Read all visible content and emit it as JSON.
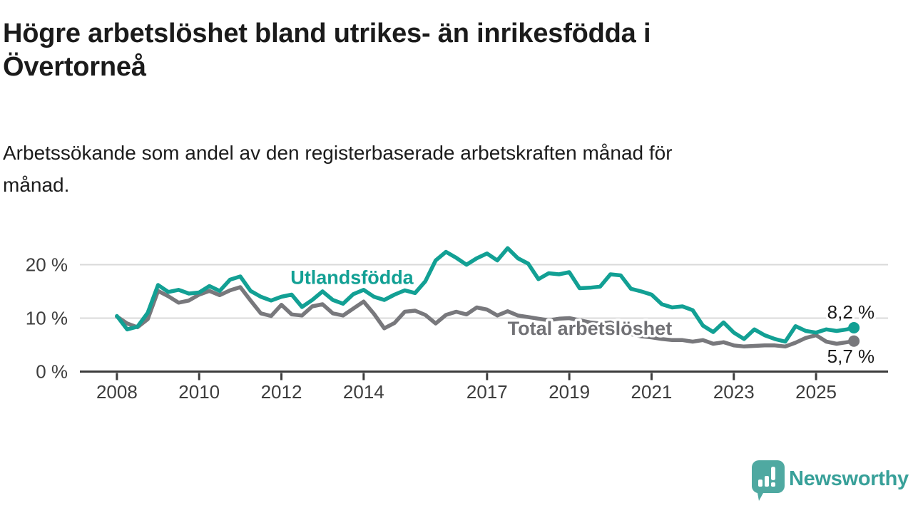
{
  "header": {
    "title": "Högre arbetslöshet bland utrikes- än inrikesfödda i\nÖvertorneå",
    "subtitle": "Arbetssökande som andel av den registerbaserade arbetskraften månad för\nmånad."
  },
  "footer": {
    "brand": "Newsworthy"
  },
  "colors": {
    "teal": "#12a094",
    "gray": "#78787c",
    "gray_label": "#717175",
    "grid": "#d9d9d9",
    "axis": "#3c3c3c",
    "text": "#1b1b1b",
    "logo_teal": "#4fa9a1",
    "wordmark_teal": "#38a099"
  },
  "chart_data": {
    "type": "line",
    "title": "Högre arbetslöshet bland utrikes- än inrikesfödda i Övertorneå",
    "subtitle": "Arbetssökande som andel av den registerbaserade arbetskraften månad för månad.",
    "xlabel": "",
    "ylabel": "",
    "xlim": [
      2007.1,
      2026.75
    ],
    "ylim": [
      0,
      24.2
    ],
    "grid": "horizontal-only",
    "legend_position": "inline-labels",
    "x_ticks": [
      2008,
      2010,
      2012,
      2014,
      2017,
      2019,
      2021,
      2023,
      2025
    ],
    "y_ticks": [
      {
        "v": 0,
        "label": "0 %"
      },
      {
        "v": 10,
        "label": "10 %"
      },
      {
        "v": 20,
        "label": "20 %"
      }
    ],
    "grid_y": [
      10,
      20
    ],
    "series": [
      {
        "name": "Utlandsfödda",
        "color": "#12a094",
        "label_color": "#12a094",
        "label_anchor": {
          "x": 2012.22,
          "y": 16.4
        },
        "end_label": "8,2 %",
        "end_value": 8.2,
        "points": [
          [
            2008.0,
            10.4
          ],
          [
            2008.25,
            7.9
          ],
          [
            2008.5,
            8.4
          ],
          [
            2008.75,
            11.0
          ],
          [
            2009.0,
            16.2
          ],
          [
            2009.25,
            14.9
          ],
          [
            2009.5,
            15.3
          ],
          [
            2009.75,
            14.6
          ],
          [
            2010.0,
            14.8
          ],
          [
            2010.25,
            16.0
          ],
          [
            2010.5,
            15.1
          ],
          [
            2010.75,
            17.2
          ],
          [
            2011.0,
            17.8
          ],
          [
            2011.25,
            15.1
          ],
          [
            2011.5,
            14.0
          ],
          [
            2011.75,
            13.3
          ],
          [
            2012.0,
            14.0
          ],
          [
            2012.25,
            14.4
          ],
          [
            2012.5,
            12.1
          ],
          [
            2012.75,
            13.4
          ],
          [
            2013.0,
            15.0
          ],
          [
            2013.25,
            13.4
          ],
          [
            2013.5,
            12.7
          ],
          [
            2013.75,
            14.5
          ],
          [
            2014.0,
            15.3
          ],
          [
            2014.25,
            14.0
          ],
          [
            2014.5,
            13.4
          ],
          [
            2014.75,
            14.4
          ],
          [
            2015.0,
            15.2
          ],
          [
            2015.25,
            14.7
          ],
          [
            2015.5,
            16.9
          ],
          [
            2015.75,
            20.8
          ],
          [
            2016.0,
            22.4
          ],
          [
            2016.25,
            21.3
          ],
          [
            2016.5,
            20.0
          ],
          [
            2016.75,
            21.2
          ],
          [
            2017.0,
            22.1
          ],
          [
            2017.25,
            20.8
          ],
          [
            2017.5,
            23.1
          ],
          [
            2017.75,
            21.2
          ],
          [
            2018.0,
            20.2
          ],
          [
            2018.25,
            17.3
          ],
          [
            2018.5,
            18.4
          ],
          [
            2018.75,
            18.2
          ],
          [
            2019.0,
            18.6
          ],
          [
            2019.25,
            15.6
          ],
          [
            2019.5,
            15.7
          ],
          [
            2019.75,
            15.9
          ],
          [
            2020.0,
            18.2
          ],
          [
            2020.25,
            18.0
          ],
          [
            2020.5,
            15.5
          ],
          [
            2020.75,
            15.0
          ],
          [
            2021.0,
            14.4
          ],
          [
            2021.25,
            12.6
          ],
          [
            2021.5,
            12.0
          ],
          [
            2021.75,
            12.2
          ],
          [
            2022.0,
            11.5
          ],
          [
            2022.25,
            8.6
          ],
          [
            2022.5,
            7.4
          ],
          [
            2022.75,
            9.2
          ],
          [
            2023.0,
            7.3
          ],
          [
            2023.25,
            6.1
          ],
          [
            2023.5,
            7.9
          ],
          [
            2023.75,
            6.8
          ],
          [
            2024.0,
            6.1
          ],
          [
            2024.25,
            5.6
          ],
          [
            2024.5,
            8.5
          ],
          [
            2024.75,
            7.6
          ],
          [
            2025.0,
            7.3
          ],
          [
            2025.25,
            7.9
          ],
          [
            2025.5,
            7.6
          ],
          [
            2025.75,
            7.9
          ],
          [
            2025.92,
            8.2
          ]
        ]
      },
      {
        "name": "Total arbetslöshet",
        "color": "#78787c",
        "label_color": "#717175",
        "label_anchor": {
          "x": 2017.5,
          "y": 6.85
        },
        "end_label": "5,7 %",
        "end_value": 5.7,
        "points": [
          [
            2008.0,
            10.3
          ],
          [
            2008.25,
            9.0
          ],
          [
            2008.5,
            8.3
          ],
          [
            2008.75,
            9.8
          ],
          [
            2009.0,
            15.1
          ],
          [
            2009.25,
            14.1
          ],
          [
            2009.5,
            12.9
          ],
          [
            2009.75,
            13.3
          ],
          [
            2010.0,
            14.4
          ],
          [
            2010.25,
            15.1
          ],
          [
            2010.5,
            14.3
          ],
          [
            2010.75,
            15.2
          ],
          [
            2011.0,
            15.8
          ],
          [
            2011.25,
            13.3
          ],
          [
            2011.5,
            10.9
          ],
          [
            2011.75,
            10.4
          ],
          [
            2012.0,
            12.5
          ],
          [
            2012.25,
            10.7
          ],
          [
            2012.5,
            10.5
          ],
          [
            2012.75,
            12.2
          ],
          [
            2013.0,
            12.6
          ],
          [
            2013.25,
            10.9
          ],
          [
            2013.5,
            10.5
          ],
          [
            2013.75,
            11.8
          ],
          [
            2014.0,
            13.1
          ],
          [
            2014.25,
            10.8
          ],
          [
            2014.5,
            8.1
          ],
          [
            2014.75,
            9.1
          ],
          [
            2015.0,
            11.2
          ],
          [
            2015.25,
            11.4
          ],
          [
            2015.5,
            10.6
          ],
          [
            2015.75,
            9.0
          ],
          [
            2016.0,
            10.6
          ],
          [
            2016.25,
            11.2
          ],
          [
            2016.5,
            10.7
          ],
          [
            2016.75,
            12.0
          ],
          [
            2017.0,
            11.6
          ],
          [
            2017.25,
            10.5
          ],
          [
            2017.5,
            11.3
          ],
          [
            2017.75,
            10.5
          ],
          [
            2018.0,
            10.2
          ],
          [
            2018.25,
            9.9
          ],
          [
            2018.5,
            9.6
          ],
          [
            2018.75,
            9.9
          ],
          [
            2019.0,
            10.0
          ],
          [
            2019.25,
            9.6
          ],
          [
            2019.5,
            9.2
          ],
          [
            2019.75,
            9.0
          ],
          [
            2020.0,
            9.2
          ],
          [
            2020.25,
            8.2
          ],
          [
            2020.5,
            7.0
          ],
          [
            2020.75,
            6.6
          ],
          [
            2021.0,
            6.4
          ],
          [
            2021.25,
            6.1
          ],
          [
            2021.5,
            5.9
          ],
          [
            2021.75,
            5.9
          ],
          [
            2022.0,
            5.6
          ],
          [
            2022.25,
            5.9
          ],
          [
            2022.5,
            5.2
          ],
          [
            2022.75,
            5.5
          ],
          [
            2023.0,
            4.9
          ],
          [
            2023.25,
            4.7
          ],
          [
            2023.5,
            4.8
          ],
          [
            2023.75,
            4.9
          ],
          [
            2024.0,
            4.9
          ],
          [
            2024.25,
            4.7
          ],
          [
            2024.5,
            5.4
          ],
          [
            2024.75,
            6.3
          ],
          [
            2025.0,
            6.8
          ],
          [
            2025.25,
            5.6
          ],
          [
            2025.5,
            5.2
          ],
          [
            2025.75,
            5.5
          ],
          [
            2025.92,
            5.7
          ]
        ]
      }
    ]
  }
}
